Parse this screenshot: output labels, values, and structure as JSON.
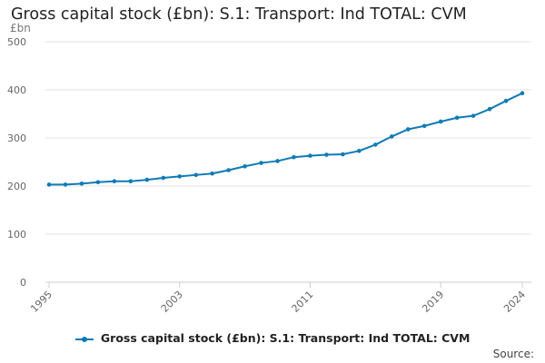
{
  "title": "Gross capital stock (£bn): S.1: Transport: Ind TOTAL: CVM",
  "unit_label": "£bn",
  "source_label": "Source:",
  "colors": {
    "series": "#0f7bb5",
    "grid": "#e3e3e3",
    "tick_text": "#666666"
  },
  "chart_data": {
    "type": "line",
    "title": "Gross capital stock (£bn): S.1: Transport: Ind TOTAL: CVM",
    "xlabel": "",
    "ylabel": "£bn",
    "x": [
      1995,
      1996,
      1997,
      1998,
      1999,
      2000,
      2001,
      2002,
      2003,
      2004,
      2005,
      2006,
      2007,
      2008,
      2009,
      2010,
      2011,
      2012,
      2013,
      2014,
      2015,
      2016,
      2017,
      2018,
      2019,
      2020,
      2021,
      2022,
      2023,
      2024
    ],
    "xticks": [
      1995,
      2003,
      2011,
      2019,
      2024
    ],
    "ylim": [
      0,
      500
    ],
    "yticks": [
      0,
      100,
      200,
      300,
      400,
      500
    ],
    "grid": true,
    "legend_position": "bottom",
    "series": [
      {
        "name": "Gross capital stock (£bn): S.1: Transport: Ind TOTAL: CVM",
        "values": [
          203,
          203,
          205,
          208,
          210,
          210,
          213,
          217,
          220,
          223,
          226,
          233,
          241,
          248,
          252,
          260,
          263,
          265,
          266,
          273,
          286,
          303,
          318,
          325,
          334,
          342,
          346,
          360,
          377,
          393
        ]
      }
    ]
  }
}
